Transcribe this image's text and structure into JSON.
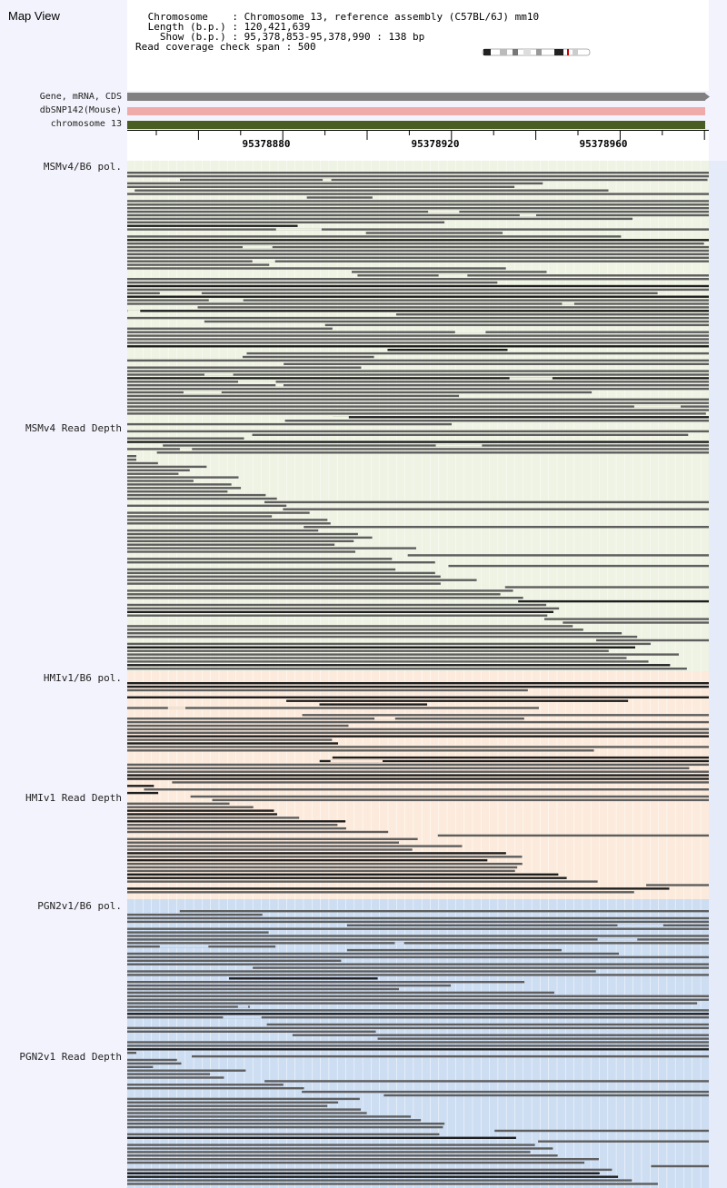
{
  "app": {
    "title": "Map View"
  },
  "header": {
    "lines": [
      " Chromosome    : Chromosome 13, reference assembly (C57BL/6J) mm10",
      " Length (b.p.) : 120,421,639",
      "   Show (b.p.) : 95,378,853-95,378,990 : 138 bp",
      "Read coverage check span : 500"
    ]
  },
  "tracks": {
    "gene": "Gene, mRNA, CDS",
    "snp": "dbSNP142(Mouse)",
    "chrom": "chromosome 13"
  },
  "ruler": {
    "labels": [
      "95378880",
      "95378920",
      "95378960"
    ]
  },
  "panels": [
    {
      "pol_label": "MSMv4/B6 pol.",
      "depth_label": "MSMv4 Read Depth",
      "bg": "#eef3e3"
    },
    {
      "pol_label": "HMIv1/B6 pol.",
      "depth_label": "HMIv1 Read Depth",
      "bg": "#fcebdc"
    },
    {
      "pol_label": "PGN2v1/B6 pol.",
      "depth_label": "PGN2v1 Read Depth",
      "bg": "#cdddf2"
    }
  ],
  "colors": {
    "read": "#5e5e5e",
    "read_dark": "#1e1e1e",
    "gene": "#808080",
    "snp": "#efaaaa",
    "chrom": "#4a5e24"
  }
}
